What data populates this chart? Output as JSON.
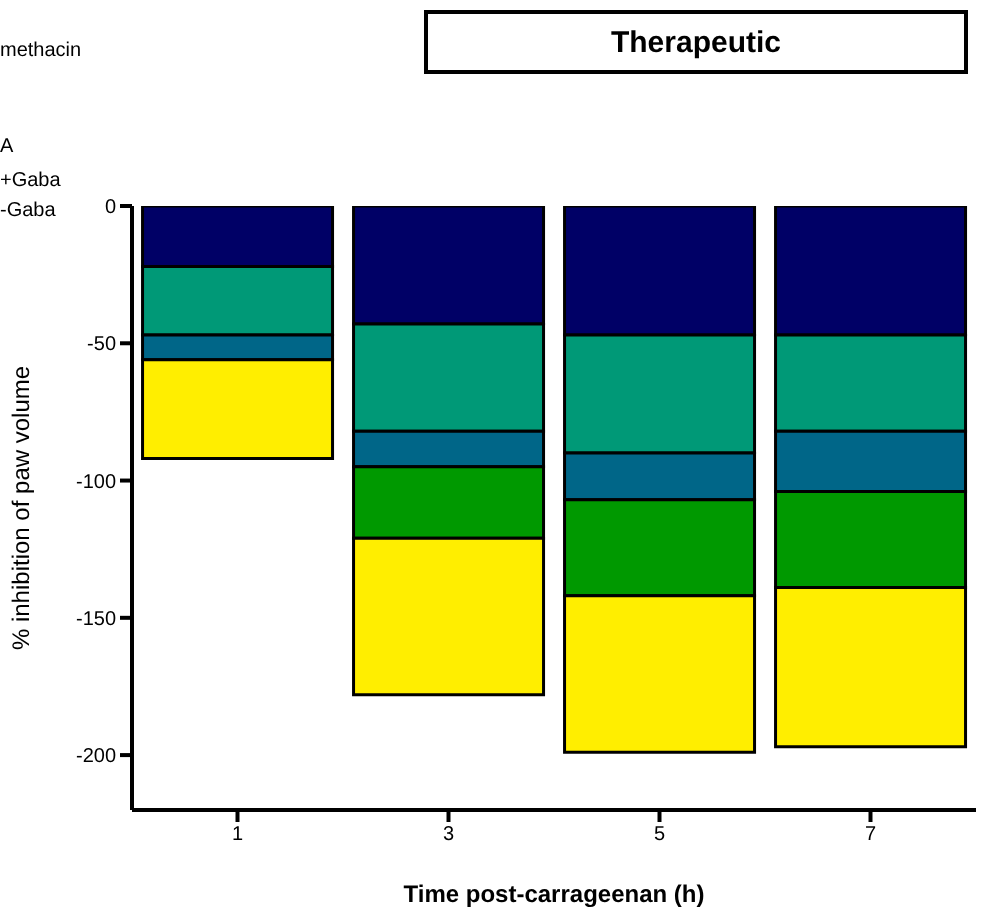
{
  "chart_data": {
    "type": "bar",
    "title": "Therapeutic",
    "xlabel": "Time post-carrageenan (h)",
    "ylabel": "% inhibition of paw volume",
    "annotations": [
      "methacin",
      "A",
      "+Gaba",
      "-Gaba"
    ],
    "categories": [
      "1",
      "3",
      "5",
      "7"
    ],
    "stacked": true,
    "series": [
      {
        "color": "#000066",
        "values": [
          -22,
          -43,
          -47,
          -47
        ]
      },
      {
        "color": "#009977",
        "values": [
          -25,
          -39,
          -43,
          -35
        ]
      },
      {
        "color": "#006688",
        "values": [
          -9,
          -13,
          -17,
          -22
        ]
      },
      {
        "color": "#009900",
        "values": [
          0,
          -26,
          -35,
          -35
        ]
      },
      {
        "color": "#ffee00",
        "values": [
          -36,
          -57,
          -57,
          -58
        ]
      }
    ],
    "ylim": [
      -220,
      0
    ],
    "yticks": [
      0,
      -50,
      -100,
      -150,
      -200
    ],
    "grid": false,
    "legend": false
  }
}
